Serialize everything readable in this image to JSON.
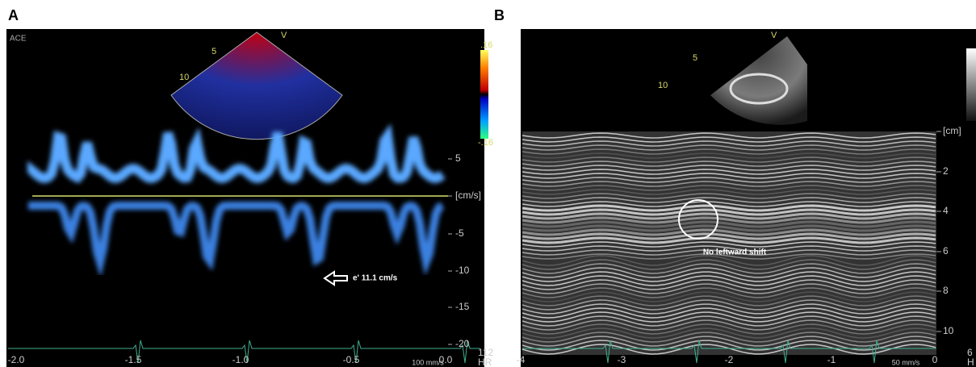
{
  "panel_a": {
    "label": "A",
    "mode_label": "ACE",
    "sector_depths": [
      "5",
      "10"
    ],
    "sector_marker": "V",
    "scale_max": ".16",
    "scale_min": "-.16",
    "velocity_ticks": [
      "5",
      "[cm/s]",
      "-5",
      "-10",
      "-15",
      "-20"
    ],
    "time_ticks": [
      "-2.0",
      "-1.5",
      "-1.0",
      "-0.5",
      "0.0"
    ],
    "sweep_speed": "100 mm/s",
    "heart_rate": "112",
    "heart_rate_unit": "HR",
    "annotation": "e' 11.1 cm/s"
  },
  "panel_b": {
    "label": "B",
    "sector_depths": [
      "5",
      "10"
    ],
    "sector_marker": "V",
    "depth_ticks": [
      "[cm]",
      "2",
      "4",
      "6",
      "8",
      "10"
    ],
    "time_ticks": [
      "-4",
      "-3",
      "-2",
      "-1",
      "0"
    ],
    "sweep_speed": "50 mm/s",
    "heart_rate": "6",
    "heart_rate_unit": "H",
    "annotation": "No leftward shift"
  }
}
